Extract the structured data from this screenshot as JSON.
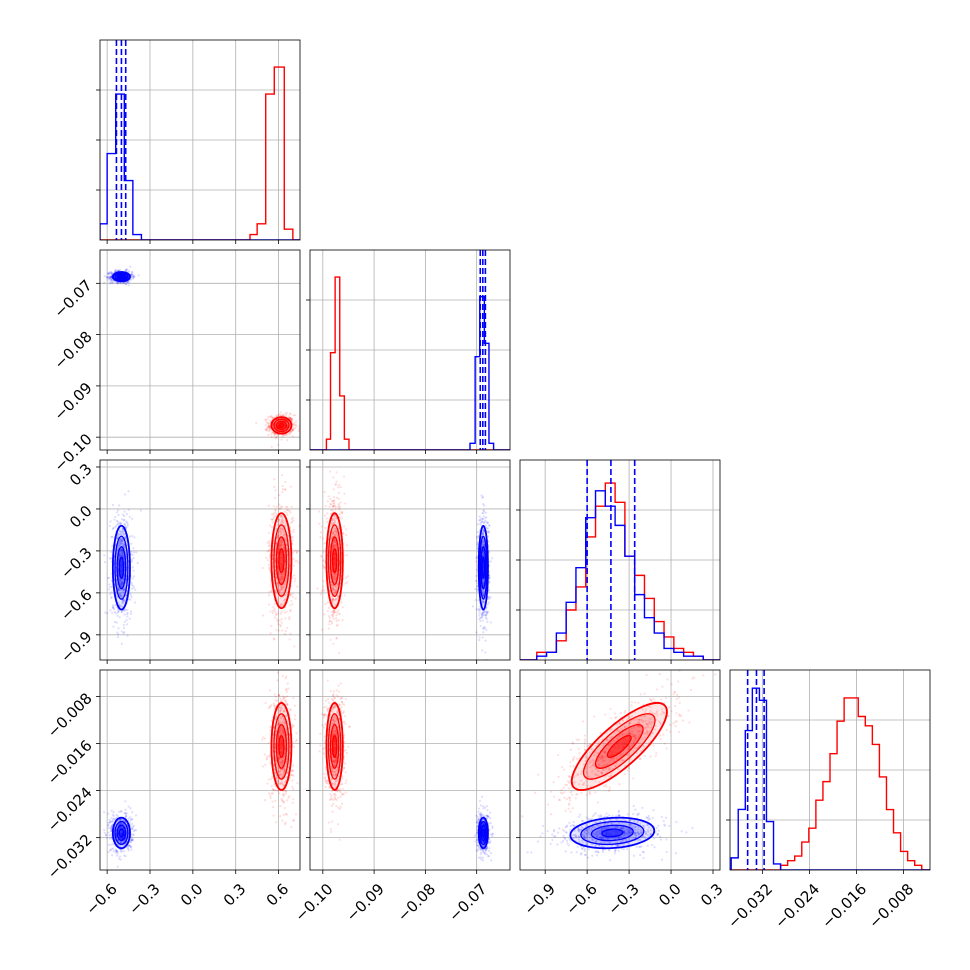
{
  "chart_data": {
    "type": "corner",
    "grid": true,
    "colors": {
      "red": "#ff0000",
      "blue": "#0000ff"
    },
    "parameters": [
      {
        "range": [
          -0.65,
          0.75
        ],
        "ticks": [
          -0.6,
          -0.3,
          0.0,
          0.3,
          0.6
        ],
        "tick_labels": [
          "−0.6",
          "−0.3",
          "0.0",
          "0.3",
          "0.6"
        ]
      },
      {
        "range": [
          -0.1025,
          -0.0635
        ],
        "ticks": [
          -0.1,
          -0.09,
          -0.08,
          -0.07
        ],
        "tick_labels": [
          "−0.10",
          "−0.09",
          "−0.08",
          "−0.07"
        ]
      },
      {
        "range": [
          -1.08,
          0.35
        ],
        "ticks": [
          -0.9,
          -0.6,
          -0.3,
          0.0,
          0.3
        ],
        "tick_labels": [
          "−0.9",
          "−0.6",
          "−0.3",
          "0.0",
          "0.3"
        ]
      },
      {
        "range": [
          -0.0375,
          -0.0035
        ],
        "ticks": [
          -0.032,
          -0.024,
          -0.016,
          -0.008
        ],
        "tick_labels": [
          "−0.032",
          "−0.024",
          "−0.016",
          "−0.008"
        ]
      }
    ],
    "series": [
      {
        "color": "#ff0000",
        "mean": [
          0.62,
          -0.0977,
          -0.37,
          -0.0165
        ],
        "std": [
          0.035,
          0.0008,
          0.17,
          0.0037
        ],
        "corr": {
          "2-3": 0.8
        },
        "hist": [
          {
            "edges": [
              0.4,
              0.45,
              0.51,
              0.57,
              0.64,
              0.7
            ],
            "counts": [
              1,
              3,
              27,
              32,
              2
            ],
            "ymax": 37
          },
          {
            "edges": [
              -0.0993,
              -0.0985,
              -0.0976,
              -0.0967,
              -0.0958,
              -0.0949
            ],
            "counts": [
              1,
              9,
              16,
              5,
              1
            ],
            "ymax": 18.5
          },
          {
            "edges": [
              -1.03,
              -0.96,
              -0.89,
              -0.82,
              -0.75,
              -0.68,
              -0.61,
              -0.54,
              -0.47,
              -0.4,
              -0.33,
              -0.26,
              -0.19,
              -0.12,
              -0.05,
              0.02,
              0.09,
              0.16,
              0.23,
              0.3
            ],
            "counts": [
              0,
              2,
              2,
              5,
              13,
              19,
              32,
              40,
              46,
              41,
              27,
              22,
              16,
              10,
              6,
              3,
              2,
              1,
              0
            ],
            "ymax": 52
          },
          {
            "edges": [
              -0.0325,
              -0.0313,
              -0.0301,
              -0.0289,
              -0.0277,
              -0.0265,
              -0.0253,
              -0.0241,
              -0.0229,
              -0.0217,
              -0.0205,
              -0.0193,
              -0.0181,
              -0.0169,
              -0.0157,
              -0.0145,
              -0.0133,
              -0.0121,
              -0.0109,
              -0.0097,
              -0.0085,
              -0.0073,
              -0.0061,
              -0.0049,
              -0.0037
            ],
            "counts": [
              0,
              0,
              0,
              1,
              2,
              3,
              6,
              9,
              15,
              19,
              25,
              32,
              37,
              37,
              33,
              31,
              27,
              20,
              13,
              8,
              4,
              2,
              1,
              0
            ],
            "ymax": 43
          }
        ]
      },
      {
        "color": "#0000ff",
        "mean": [
          -0.5,
          -0.0687,
          -0.42,
          -0.0312
        ],
        "std": [
          0.03,
          0.00045,
          0.15,
          0.0013
        ],
        "corr": {
          "2-3": 0.15
        },
        "quantiles": [
          [
            -0.535,
            -0.5,
            -0.47
          ],
          [
            -0.0693,
            -0.0688,
            -0.0683
          ],
          [
            -0.6,
            -0.43,
            -0.26
          ],
          [
            -0.0345,
            -0.033,
            -0.0317
          ]
        ],
        "hist": [
          {
            "edges": [
              -0.65,
              -0.6,
              -0.54,
              -0.48,
              -0.42,
              -0.36
            ],
            "counts": [
              3,
              16,
              27,
              11,
              1
            ],
            "ymax": 37
          },
          {
            "edges": [
              -0.0713,
              -0.0703,
              -0.0694,
              -0.0685,
              -0.0676,
              -0.0667
            ],
            "counts": [
              1,
              14,
              23,
              16,
              1
            ],
            "ymax": 30
          },
          {
            "edges": [
              -1.03,
              -0.96,
              -0.89,
              -0.82,
              -0.75,
              -0.68,
              -0.61,
              -0.54,
              -0.47,
              -0.4,
              -0.33,
              -0.26,
              -0.19,
              -0.12,
              -0.05,
              0.02,
              0.09,
              0.16,
              0.23,
              0.3
            ],
            "counts": [
              0,
              1,
              2,
              7,
              15,
              24,
              37,
              44,
              40,
              35,
              27,
              17,
              11,
              7,
              3,
              2,
              1,
              1,
              0
            ],
            "ymax": 52
          },
          {
            "edges": [
              -0.0385,
              -0.0373,
              -0.0361,
              -0.0349,
              -0.0337,
              -0.0325,
              -0.0313,
              -0.0301,
              -0.0289
            ],
            "counts": [
              0,
              2,
              10,
              23,
              30,
              28,
              8,
              1
            ],
            "ymax": 33
          }
        ]
      }
    ]
  }
}
